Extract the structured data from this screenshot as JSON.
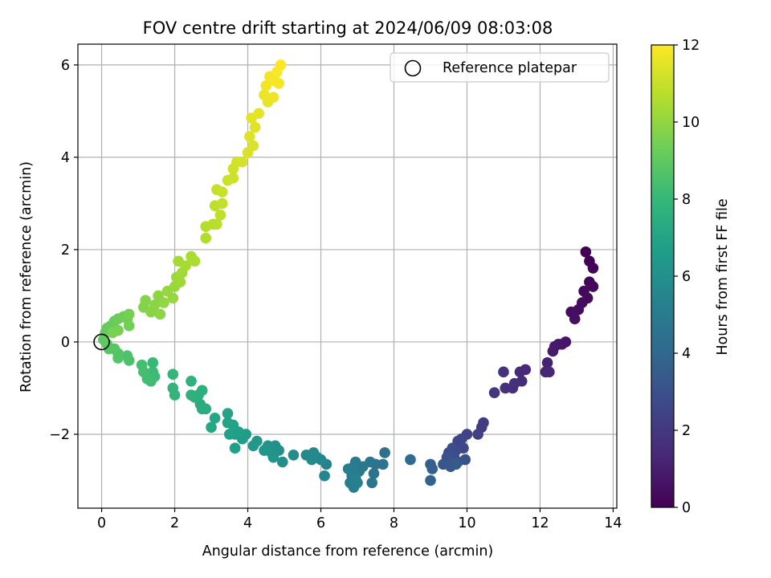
{
  "chart_data": {
    "type": "scatter",
    "title": "FOV centre drift starting at 2024/06/09 08:03:08",
    "xlabel": "Angular distance from reference (arcmin)",
    "ylabel": "Rotation from reference (arcmin)",
    "xlim": [
      -0.65,
      14.1
    ],
    "ylim": [
      -3.6,
      6.45
    ],
    "xticks": [
      0,
      2,
      4,
      6,
      8,
      10,
      12,
      14
    ],
    "yticks": [
      -2,
      0,
      2,
      4,
      6
    ],
    "ytick_labels": [
      "−2",
      "0",
      "2",
      "4",
      "6"
    ],
    "grid": true,
    "legend": {
      "placement": "top-right",
      "entries": [
        "Reference platepar"
      ]
    },
    "reference_point": {
      "x": 0,
      "y": 0,
      "label": "Reference platepar"
    },
    "colorbar": {
      "label": "Hours from first FF file",
      "range": [
        0,
        12
      ],
      "ticks": [
        0,
        2,
        4,
        6,
        8,
        10,
        12
      ],
      "colormap": "viridis"
    },
    "colormap_stops": [
      "#440154",
      "#482878",
      "#3e4989",
      "#31688e",
      "#26828e",
      "#1f9e89",
      "#35b779",
      "#6ece58",
      "#b5de2b",
      "#fde725"
    ],
    "series": [
      {
        "color_value": "hours",
        "points": [
          [
            13.25,
            1.95,
            0.0
          ],
          [
            13.35,
            1.75,
            0.05
          ],
          [
            13.45,
            1.6,
            0.1
          ],
          [
            13.35,
            1.3,
            0.15
          ],
          [
            13.45,
            1.2,
            0.2
          ],
          [
            13.2,
            1.1,
            0.25
          ],
          [
            13.3,
            0.95,
            0.3
          ],
          [
            13.15,
            0.85,
            0.35
          ],
          [
            13.05,
            0.7,
            0.4
          ],
          [
            12.85,
            0.65,
            0.45
          ],
          [
            12.95,
            0.5,
            0.5
          ],
          [
            12.7,
            0.0,
            0.7
          ],
          [
            12.6,
            -0.05,
            0.75
          ],
          [
            12.5,
            -0.05,
            0.8
          ],
          [
            12.4,
            -0.1,
            0.85
          ],
          [
            12.35,
            -0.2,
            0.9
          ],
          [
            12.2,
            -0.45,
            1.1
          ],
          [
            12.15,
            -0.65,
            1.2
          ],
          [
            12.25,
            -0.65,
            1.25
          ],
          [
            11.6,
            -0.6,
            1.4
          ],
          [
            11.45,
            -0.65,
            1.45
          ],
          [
            11.5,
            -0.85,
            1.5
          ],
          [
            11.3,
            -0.9,
            1.6
          ],
          [
            11.25,
            -1.0,
            1.65
          ],
          [
            11.0,
            -0.65,
            1.7
          ],
          [
            11.05,
            -1.0,
            1.75
          ],
          [
            10.75,
            -1.1,
            1.85
          ],
          [
            10.45,
            -1.75,
            2.1
          ],
          [
            10.4,
            -1.85,
            2.15
          ],
          [
            10.3,
            -2.0,
            2.3
          ],
          [
            10.0,
            -2.0,
            2.4
          ],
          [
            9.85,
            -2.1,
            2.5
          ],
          [
            9.75,
            -2.15,
            2.55
          ],
          [
            9.9,
            -2.3,
            2.6
          ],
          [
            9.7,
            -2.35,
            2.7
          ],
          [
            9.6,
            -2.3,
            2.8
          ],
          [
            9.5,
            -2.4,
            2.85
          ],
          [
            9.65,
            -2.5,
            2.9
          ],
          [
            9.45,
            -2.5,
            3.0
          ],
          [
            9.95,
            -2.55,
            3.05
          ],
          [
            9.75,
            -2.6,
            3.1
          ],
          [
            9.55,
            -2.6,
            3.2
          ],
          [
            9.35,
            -2.65,
            3.25
          ],
          [
            9.55,
            -2.7,
            3.3
          ],
          [
            9.7,
            -2.65,
            3.4
          ],
          [
            9.0,
            -2.65,
            3.6
          ],
          [
            9.05,
            -2.75,
            3.7
          ],
          [
            9.0,
            -3.0,
            3.8
          ],
          [
            8.45,
            -2.55,
            4.1
          ],
          [
            7.75,
            -2.4,
            4.4
          ],
          [
            7.7,
            -2.65,
            4.5
          ],
          [
            7.5,
            -2.65,
            4.55
          ],
          [
            7.45,
            -2.85,
            4.6
          ],
          [
            7.35,
            -2.6,
            4.65
          ],
          [
            7.4,
            -3.05,
            4.7
          ],
          [
            7.15,
            -2.7,
            4.8
          ],
          [
            7.05,
            -2.8,
            4.85
          ],
          [
            6.95,
            -2.6,
            4.9
          ],
          [
            6.9,
            -2.7,
            4.95
          ],
          [
            6.85,
            -2.9,
            5.0
          ],
          [
            6.8,
            -3.05,
            5.05
          ],
          [
            6.75,
            -2.75,
            5.1
          ],
          [
            6.9,
            -3.15,
            5.15
          ],
          [
            7.0,
            -3.05,
            5.2
          ],
          [
            6.95,
            -2.95,
            5.25
          ],
          [
            6.15,
            -2.65,
            5.4
          ],
          [
            6.1,
            -2.9,
            5.45
          ],
          [
            6.0,
            -2.55,
            5.5
          ],
          [
            5.9,
            -2.5,
            5.55
          ],
          [
            5.8,
            -2.4,
            5.6
          ],
          [
            5.6,
            -2.45,
            5.65
          ],
          [
            5.75,
            -2.55,
            5.7
          ],
          [
            5.25,
            -2.45,
            5.85
          ],
          [
            4.95,
            -2.6,
            5.95
          ],
          [
            4.85,
            -2.35,
            6.0
          ],
          [
            4.75,
            -2.25,
            6.05
          ],
          [
            4.65,
            -2.4,
            6.1
          ],
          [
            4.55,
            -2.25,
            6.15
          ],
          [
            4.7,
            -2.5,
            6.2
          ],
          [
            4.45,
            -2.35,
            6.3
          ],
          [
            4.25,
            -2.15,
            6.4
          ],
          [
            4.15,
            -2.25,
            6.45
          ],
          [
            3.95,
            -2.0,
            6.55
          ],
          [
            3.85,
            -2.1,
            6.6
          ],
          [
            3.65,
            -2.0,
            6.65
          ],
          [
            3.75,
            -1.95,
            6.7
          ],
          [
            3.65,
            -2.3,
            6.75
          ],
          [
            3.5,
            -2.0,
            6.8
          ],
          [
            3.6,
            -1.8,
            6.9
          ],
          [
            3.45,
            -1.75,
            6.95
          ],
          [
            3.45,
            -1.55,
            7.0
          ],
          [
            3.1,
            -1.65,
            7.1
          ],
          [
            3.0,
            -1.85,
            7.15
          ],
          [
            2.85,
            -1.45,
            7.3
          ],
          [
            2.75,
            -1.45,
            7.35
          ],
          [
            2.7,
            -1.35,
            7.4
          ],
          [
            2.55,
            -1.2,
            7.5
          ],
          [
            2.75,
            -1.05,
            7.55
          ],
          [
            2.65,
            -1.15,
            7.6
          ],
          [
            2.45,
            -1.15,
            7.65
          ],
          [
            2.45,
            -0.85,
            7.7
          ],
          [
            1.95,
            -1.0,
            7.85
          ],
          [
            2.0,
            -1.15,
            7.9
          ],
          [
            1.95,
            -0.7,
            7.95
          ],
          [
            1.4,
            -0.45,
            8.1
          ],
          [
            1.4,
            -0.65,
            8.15
          ],
          [
            1.45,
            -0.75,
            8.2
          ],
          [
            1.35,
            -0.85,
            8.25
          ],
          [
            1.25,
            -0.8,
            8.3
          ],
          [
            1.15,
            -0.65,
            8.35
          ],
          [
            1.1,
            -0.5,
            8.4
          ],
          [
            0.75,
            -0.4,
            8.55
          ],
          [
            0.7,
            -0.3,
            8.6
          ],
          [
            0.45,
            -0.25,
            8.7
          ],
          [
            0.45,
            -0.35,
            8.75
          ],
          [
            0.35,
            -0.15,
            8.8
          ],
          [
            0.2,
            -0.15,
            8.85
          ],
          [
            0.15,
            -0.05,
            8.9
          ],
          [
            0.05,
            0.05,
            9.0
          ],
          [
            0.1,
            0.2,
            9.05
          ],
          [
            0.15,
            0.3,
            9.1
          ],
          [
            0.25,
            0.35,
            9.15
          ],
          [
            0.35,
            0.45,
            9.2
          ],
          [
            0.45,
            0.5,
            9.25
          ],
          [
            0.6,
            0.55,
            9.3
          ],
          [
            0.7,
            0.5,
            9.35
          ],
          [
            0.75,
            0.35,
            9.4
          ],
          [
            0.75,
            0.6,
            9.45
          ],
          [
            0.45,
            0.25,
            9.5
          ],
          [
            0.3,
            0.2,
            9.55
          ],
          [
            1.15,
            0.75,
            9.7
          ],
          [
            1.2,
            0.9,
            9.75
          ],
          [
            1.35,
            0.65,
            9.8
          ],
          [
            1.45,
            0.8,
            9.85
          ],
          [
            1.6,
            0.6,
            9.9
          ],
          [
            1.55,
            1.0,
            9.95
          ],
          [
            1.7,
            0.85,
            10.0
          ],
          [
            1.8,
            1.1,
            10.05
          ],
          [
            1.95,
            0.95,
            10.1
          ],
          [
            2.0,
            1.2,
            10.15
          ],
          [
            2.05,
            1.4,
            10.2
          ],
          [
            2.15,
            1.3,
            10.25
          ],
          [
            2.2,
            1.5,
            10.3
          ],
          [
            2.1,
            1.75,
            10.35
          ],
          [
            2.3,
            1.65,
            10.4
          ],
          [
            2.45,
            1.85,
            10.45
          ],
          [
            2.55,
            1.75,
            10.5
          ],
          [
            2.85,
            2.25,
            10.6
          ],
          [
            2.85,
            2.5,
            10.65
          ],
          [
            3.05,
            2.55,
            10.7
          ],
          [
            3.15,
            2.55,
            10.75
          ],
          [
            3.1,
            2.95,
            10.8
          ],
          [
            3.25,
            2.75,
            10.85
          ],
          [
            3.3,
            3.0,
            10.9
          ],
          [
            3.15,
            3.3,
            10.95
          ],
          [
            3.3,
            3.25,
            11.0
          ],
          [
            3.45,
            3.5,
            11.05
          ],
          [
            3.6,
            3.55,
            11.1
          ],
          [
            3.6,
            3.75,
            11.15
          ],
          [
            3.7,
            3.9,
            11.2
          ],
          [
            3.85,
            3.9,
            11.25
          ],
          [
            4.0,
            4.1,
            11.3
          ],
          [
            4.15,
            4.25,
            11.35
          ],
          [
            4.05,
            4.45,
            11.4
          ],
          [
            4.2,
            4.65,
            11.45
          ],
          [
            4.1,
            4.85,
            11.5
          ],
          [
            4.3,
            4.95,
            11.55
          ],
          [
            4.55,
            5.2,
            11.6
          ],
          [
            4.45,
            5.35,
            11.65
          ],
          [
            4.7,
            5.3,
            11.7
          ],
          [
            4.5,
            5.55,
            11.75
          ],
          [
            4.6,
            5.75,
            11.8
          ],
          [
            4.75,
            5.65,
            11.85
          ],
          [
            4.85,
            5.6,
            11.9
          ],
          [
            4.8,
            5.85,
            11.95
          ],
          [
            4.9,
            6.0,
            12.0
          ]
        ]
      }
    ]
  }
}
